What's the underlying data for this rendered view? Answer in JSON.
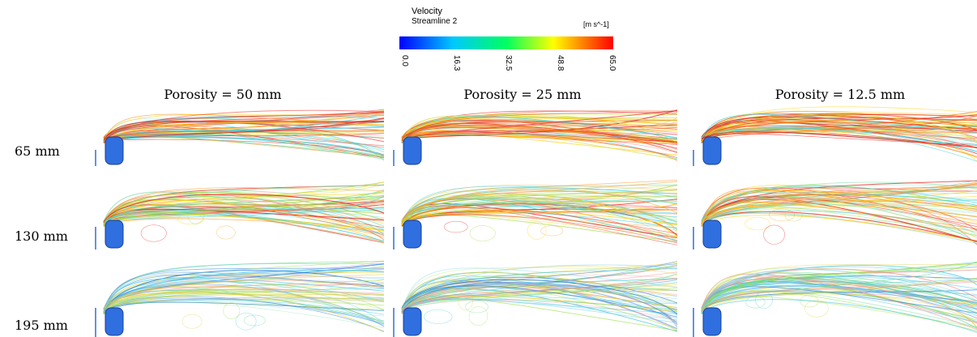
{
  "legend": {
    "title": "Velocity",
    "subtitle": "Streamline 2",
    "unit": "[m s^-1]",
    "ticks": [
      "0.0",
      "16.3",
      "32.5",
      "48.8",
      "65.0"
    ]
  },
  "columns": [
    "Porosity = 50 mm",
    "Porosity = 25 mm",
    "Porosity = 12.5 mm"
  ],
  "rows": [
    "65 mm",
    "130 mm",
    "195 mm"
  ]
}
